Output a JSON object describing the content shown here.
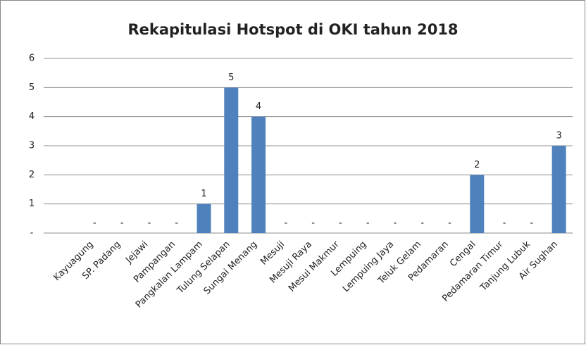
{
  "chart_data": {
    "type": "bar",
    "title": "Rekapitulasi Hotspot di OKI tahun 2018",
    "categories": [
      "Kayuagung",
      "SP. Padang",
      "Jejawi",
      "Pampangan",
      "Pangkalan Lampam",
      "Tulung Selapan",
      "Sungai Menang",
      "Mesuji",
      "Mesuji Raya",
      "Mesui Makmur",
      "Lempuing",
      "Lempuing Jaya",
      "Teluk Gelam",
      "Pedamaran",
      "Cengal",
      "Pedamaran Timur",
      "Tanjung Lubuk",
      "Air Sughan"
    ],
    "values": [
      0,
      0,
      0,
      0,
      1,
      5,
      4,
      0,
      0,
      0,
      0,
      0,
      0,
      0,
      2,
      0,
      0,
      3
    ],
    "value_labels": [
      "-",
      "-",
      "-",
      "-",
      "1",
      "5",
      "4",
      "-",
      "-",
      "-",
      "-",
      "-",
      "-",
      "-",
      "2",
      "-",
      "-",
      "3"
    ],
    "color": "#4f81bd",
    "ylim": [
      0,
      6
    ],
    "yticks": [
      {
        "value": 0,
        "label": "-"
      },
      1,
      2,
      3,
      4,
      5,
      6
    ],
    "grid": true
  }
}
